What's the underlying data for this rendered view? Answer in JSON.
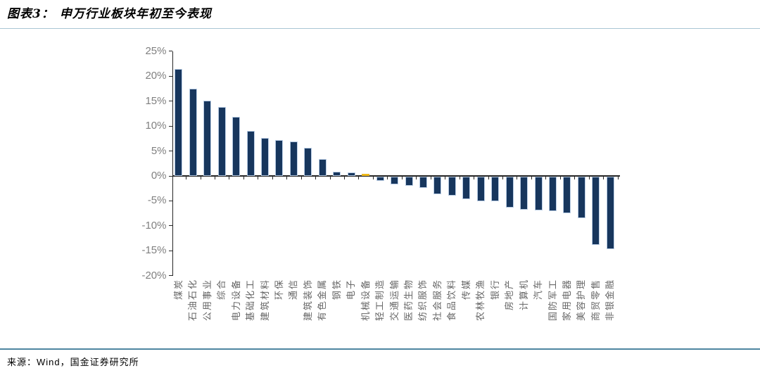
{
  "header": {
    "figure_label": "图表3：",
    "title": "申万行业板块年初至今表现"
  },
  "footer": {
    "source": "来源：Wind，国金证券研究所"
  },
  "chart_data": {
    "type": "bar",
    "title": "申万行业板块年初至今表现",
    "unit": "%",
    "grid": false,
    "legend": "none",
    "ylim": [
      -20,
      25
    ],
    "yticks": [
      25,
      20,
      15,
      10,
      5,
      0,
      -5,
      -10,
      -15,
      -20
    ],
    "ytick_labels": [
      "25%",
      "20%",
      "15%",
      "10%",
      "5%",
      "0%",
      "-5%",
      "-10%",
      "-15%",
      "-20%"
    ],
    "categories": [
      "煤炭",
      "石油石化",
      "公用事业",
      "综合",
      "电力设备",
      "基础化工",
      "建筑材料",
      "环保",
      "通信",
      "建筑装饰",
      "有色金属",
      "钢铁",
      "电子",
      "机械设备",
      "轻工制造",
      "交通运输",
      "医药生物",
      "纺织服饰",
      "社会服务",
      "食品饮料",
      "传媒",
      "农林牧渔",
      "银行",
      "房地产",
      "计算机",
      "汽车",
      "国防军工",
      "家用电器",
      "美容护理",
      "商贸零售",
      "非银金融"
    ],
    "values": [
      21.4,
      17.5,
      15.1,
      13.8,
      11.8,
      9.1,
      7.6,
      7.2,
      6.9,
      5.7,
      3.4,
      0.8,
      0.7,
      0.4,
      -0.9,
      -1.6,
      -1.8,
      -2.3,
      -3.6,
      -3.8,
      -4.6,
      -4.9,
      -5.0,
      -6.2,
      -6.7,
      -6.8,
      -7.0,
      -7.4,
      -8.3,
      -13.7,
      -14.5
    ],
    "highlight_index": 13,
    "highlight_category": "机械设备",
    "colors": {
      "bar": "#17365D",
      "bar_outline": "#B8CCE4",
      "highlight": "#FFC000",
      "highlight_outline": "#E3B52F",
      "axis": "#262626",
      "tick_label": "#808080",
      "category_label": "#666666",
      "title_rule": "#A9C6D4",
      "footer_rule": "#4E86A0"
    }
  }
}
